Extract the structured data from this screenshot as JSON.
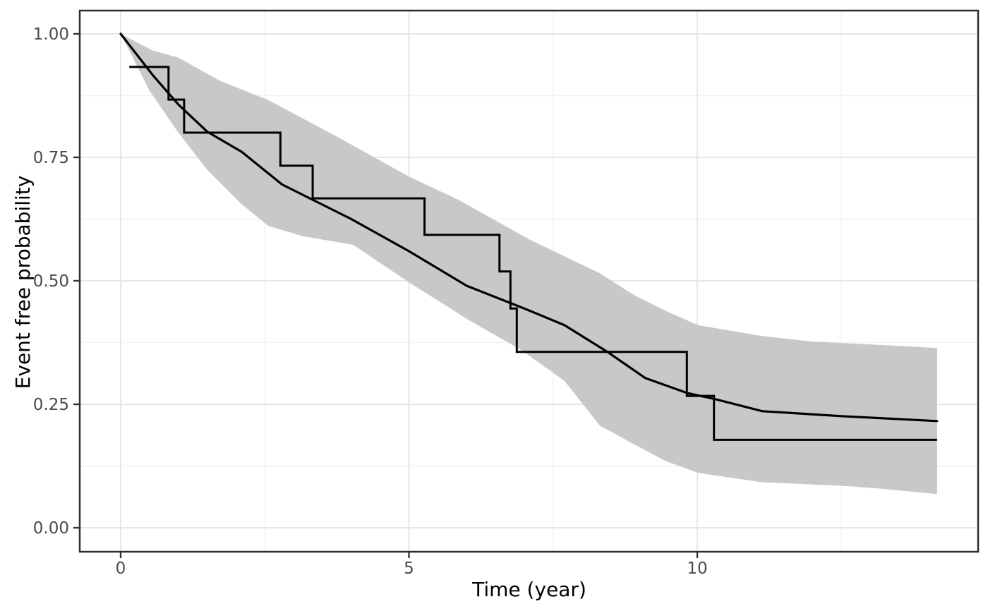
{
  "chart_data": {
    "type": "line",
    "title": "",
    "xlabel": "Time (year)",
    "ylabel": "Event free probability",
    "legend": "none",
    "grid": true,
    "panel_style": "white panel, light gray major/minor gridlines, dark gray border",
    "xlim": [
      -0.71,
      14.87
    ],
    "ylim": [
      -0.046,
      1.047
    ],
    "x_ticks": [
      {
        "value": 0,
        "label": "0"
      },
      {
        "value": 5,
        "label": "5"
      },
      {
        "value": 10,
        "label": "10"
      }
    ],
    "x_minor_ticks": [
      2.5,
      7.5,
      12.5
    ],
    "y_ticks": [
      {
        "value": 0.0,
        "label": "0.00"
      },
      {
        "value": 0.25,
        "label": "0.25"
      },
      {
        "value": 0.5,
        "label": "0.50"
      },
      {
        "value": 0.75,
        "label": "0.75"
      },
      {
        "value": 1.0,
        "label": "1.00"
      }
    ],
    "y_minor_ticks": [
      0.125,
      0.375,
      0.625,
      0.875
    ],
    "colors": {
      "curve": "#000000",
      "ribbon": "#c8c8c8",
      "grid_major": "#e6e6e6",
      "grid_minor": "#f2f2f2",
      "panel_border": "#2e2e2e",
      "tick_mark": "#333333",
      "tick_label": "#4a4a4a"
    },
    "series": [
      {
        "name": "model-estimate",
        "type": "line",
        "points": [
          [
            0,
            1.0
          ],
          [
            0.56,
            0.916
          ],
          [
            1.0,
            0.857
          ],
          [
            1.5,
            0.802
          ],
          [
            2.1,
            0.761
          ],
          [
            2.8,
            0.695
          ],
          [
            3.4,
            0.66
          ],
          [
            4.0,
            0.625
          ],
          [
            5.0,
            0.56
          ],
          [
            6.0,
            0.49
          ],
          [
            7.0,
            0.444
          ],
          [
            7.7,
            0.41
          ],
          [
            8.43,
            0.357
          ],
          [
            9.1,
            0.303
          ],
          [
            9.82,
            0.273
          ],
          [
            10.29,
            0.261
          ],
          [
            11.13,
            0.236
          ],
          [
            12.5,
            0.226
          ],
          [
            14.16,
            0.216
          ]
        ]
      },
      {
        "name": "ci-upper",
        "type": "ribbon-upper",
        "points": [
          [
            0,
            1.0
          ],
          [
            0.56,
            0.966
          ],
          [
            1.0,
            0.952
          ],
          [
            1.74,
            0.904
          ],
          [
            2.56,
            0.866
          ],
          [
            3.78,
            0.79
          ],
          [
            5.0,
            0.711
          ],
          [
            5.86,
            0.664
          ],
          [
            7.1,
            0.583
          ],
          [
            8.3,
            0.516
          ],
          [
            8.92,
            0.47
          ],
          [
            9.53,
            0.435
          ],
          [
            10.02,
            0.41
          ],
          [
            11.13,
            0.388
          ],
          [
            12.0,
            0.377
          ],
          [
            13.2,
            0.37
          ],
          [
            14.16,
            0.364
          ]
        ]
      },
      {
        "name": "ci-lower",
        "type": "ribbon-lower",
        "points": [
          [
            0,
            1.0
          ],
          [
            0.5,
            0.885
          ],
          [
            1.0,
            0.8
          ],
          [
            1.5,
            0.725
          ],
          [
            2.1,
            0.655
          ],
          [
            2.56,
            0.611
          ],
          [
            3.17,
            0.59
          ],
          [
            4.03,
            0.573
          ],
          [
            5.0,
            0.497
          ],
          [
            6.0,
            0.423
          ],
          [
            6.96,
            0.359
          ],
          [
            7.7,
            0.297
          ],
          [
            8.31,
            0.207
          ],
          [
            8.84,
            0.173
          ],
          [
            9.45,
            0.135
          ],
          [
            10.02,
            0.111
          ],
          [
            11.13,
            0.092
          ],
          [
            12.5,
            0.085
          ],
          [
            13.1,
            0.08
          ],
          [
            14.16,
            0.068
          ]
        ]
      },
      {
        "name": "kaplan-meier",
        "type": "step",
        "start": [
          0.15,
          0.933
        ],
        "drops": [
          [
            0.83,
            0.867
          ],
          [
            1.1,
            0.8
          ],
          [
            2.77,
            0.733
          ],
          [
            3.33,
            0.667
          ],
          [
            5.27,
            0.593
          ],
          [
            6.57,
            0.519
          ],
          [
            6.76,
            0.444
          ],
          [
            6.87,
            0.356
          ],
          [
            9.82,
            0.267
          ],
          [
            10.29,
            0.178
          ]
        ],
        "end_t": 14.16
      }
    ]
  }
}
